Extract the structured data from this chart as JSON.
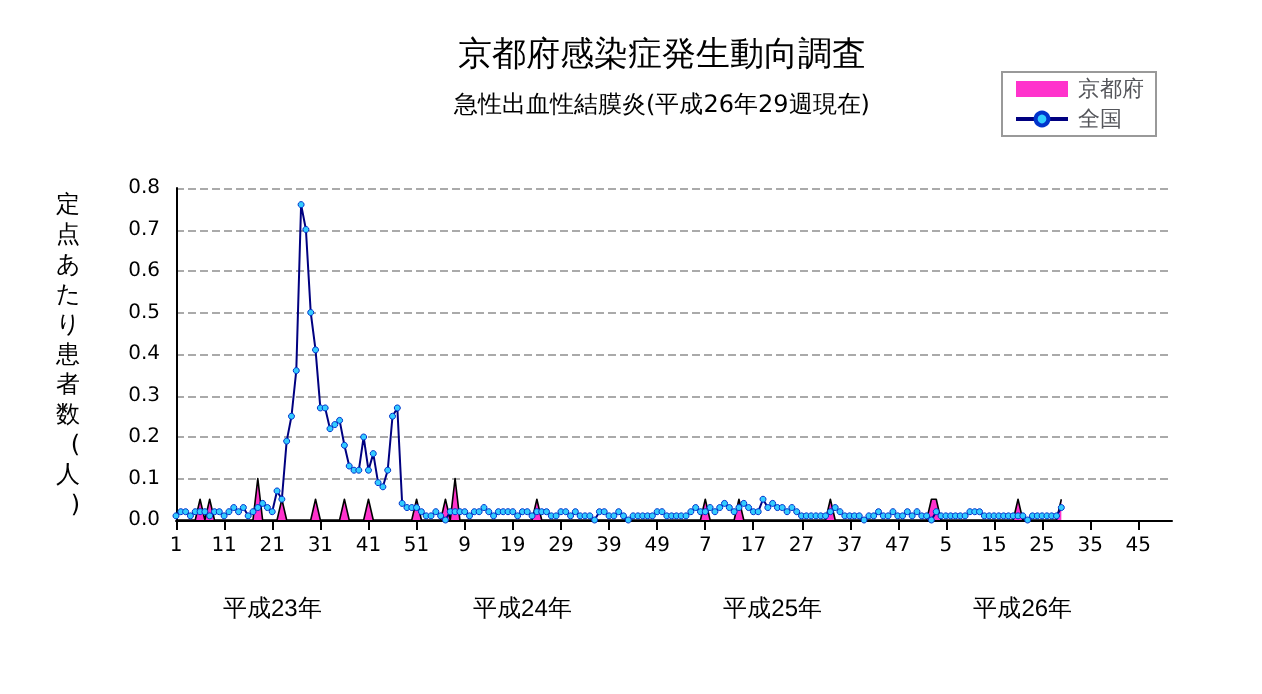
{
  "chart_data": {
    "type": "line",
    "title": "京都府感染症発生動向調査",
    "subtitle": "急性出血性結膜炎(平成26年29週現在)",
    "ylabel": "定点あたり患者数(人)",
    "annotations": [
      "平成23年",
      "平成24年",
      "平成25年",
      "平成26年"
    ],
    "categories": [
      "1",
      null,
      null,
      null,
      null,
      null,
      null,
      null,
      null,
      null,
      "11",
      null,
      null,
      null,
      null,
      null,
      null,
      null,
      null,
      null,
      "21",
      null,
      null,
      null,
      null,
      null,
      null,
      null,
      null,
      null,
      "31",
      null,
      null,
      null,
      null,
      null,
      null,
      null,
      null,
      null,
      "41",
      null,
      null,
      null,
      null,
      null,
      null,
      null,
      null,
      null,
      "51",
      null,
      null,
      null,
      null,
      null,
      null,
      null,
      null,
      null,
      "9",
      null,
      null,
      null,
      null,
      null,
      null,
      null,
      null,
      null,
      "19",
      null,
      null,
      null,
      null,
      null,
      null,
      null,
      null,
      null,
      "29",
      null,
      null,
      null,
      null,
      null,
      null,
      null,
      null,
      null,
      "39",
      null,
      null,
      null,
      null,
      null,
      null,
      null,
      null,
      null,
      "49",
      null,
      null,
      null,
      null,
      null,
      null,
      null,
      null,
      null,
      "7",
      null,
      null,
      null,
      null,
      null,
      null,
      null,
      null,
      null,
      "17",
      null,
      null,
      null,
      null,
      null,
      null,
      null,
      null,
      null,
      "27",
      null,
      null,
      null,
      null,
      null,
      null,
      null,
      null,
      null,
      "37",
      null,
      null,
      null,
      null,
      null,
      null,
      null,
      null,
      null,
      "47",
      null,
      null,
      null,
      null,
      null,
      null,
      null,
      null,
      null,
      "5",
      null,
      null,
      null,
      null,
      null,
      null,
      null,
      null,
      null,
      "15",
      null,
      null,
      null,
      null,
      null,
      null,
      null,
      null,
      null,
      "25",
      null,
      null,
      null,
      null,
      null,
      null,
      null,
      null,
      null,
      "35",
      null,
      null,
      null,
      null,
      null,
      null,
      null,
      null,
      null,
      "45",
      null,
      null,
      null,
      null,
      null,
      null,
      null
    ],
    "series": [
      {
        "name": "京都府",
        "type": "area",
        "marker": "none",
        "color": "#ff33cc",
        "values": [
          0,
          0,
          0,
          0,
          0,
          0.05,
          0,
          0.05,
          0,
          0,
          0,
          0,
          0,
          0,
          0,
          0,
          0,
          0.1,
          0,
          0,
          0,
          0,
          0.05,
          0,
          0,
          0,
          0,
          0,
          0,
          0.05,
          0,
          0,
          0,
          0,
          0,
          0.05,
          0,
          0,
          0,
          0,
          0.05,
          0,
          0,
          0,
          0,
          0,
          0,
          0,
          0,
          0,
          0.05,
          0,
          0,
          0,
          0,
          0,
          0.05,
          0,
          0.1,
          0,
          0,
          0,
          0,
          0,
          0,
          0,
          0,
          0,
          0,
          0,
          0,
          0,
          0,
          0,
          0,
          0.05,
          0,
          0,
          0,
          0,
          0,
          0,
          0,
          0,
          0,
          0,
          0,
          0,
          0,
          0,
          0,
          0,
          0,
          0,
          0,
          0,
          0,
          0,
          0,
          0,
          0,
          0,
          0,
          0,
          0,
          0,
          0,
          0,
          0,
          0,
          0.05,
          0,
          0,
          0,
          0,
          0,
          0,
          0.05,
          0,
          0,
          0,
          0,
          0,
          0,
          0,
          0,
          0,
          0,
          0,
          0,
          0,
          0,
          0,
          0,
          0,
          0,
          0.05,
          0,
          0,
          0,
          0,
          0,
          0,
          0,
          0,
          0,
          0,
          0,
          0,
          0,
          0,
          0,
          0,
          0,
          0,
          0,
          0,
          0.05,
          0.05,
          0,
          0,
          0,
          0,
          0,
          0,
          0,
          0,
          0,
          0,
          0,
          0,
          0,
          0,
          0,
          0,
          0.05,
          0,
          0,
          0,
          0,
          0,
          0,
          0,
          0,
          0.05,
          null,
          null,
          null,
          null,
          null,
          null,
          null,
          null,
          null,
          null,
          null,
          null,
          null,
          null,
          null,
          null,
          null,
          null,
          null,
          null,
          null,
          null,
          null
        ]
      },
      {
        "name": "全国",
        "color": "#33ccff",
        "values": [
          0.01,
          0.02,
          0.02,
          0.01,
          0.02,
          0.02,
          0.02,
          0.01,
          0.02,
          0.02,
          0.01,
          0.02,
          0.03,
          0.02,
          0.03,
          0.01,
          0.02,
          0.03,
          0.04,
          0.03,
          0.02,
          0.07,
          0.05,
          0.19,
          0.25,
          0.36,
          0.76,
          0.7,
          0.5,
          0.41,
          0.27,
          0.27,
          0.22,
          0.23,
          0.24,
          0.18,
          0.13,
          0.12,
          0.12,
          0.2,
          0.12,
          0.16,
          0.09,
          0.08,
          0.12,
          0.25,
          0.27,
          0.04,
          0.03,
          0.03,
          0.03,
          0.02,
          0.01,
          0.01,
          0.02,
          0.01,
          0.0,
          0.02,
          0.02,
          0.02,
          0.02,
          0.01,
          0.02,
          0.02,
          0.03,
          0.02,
          0.01,
          0.02,
          0.02,
          0.02,
          0.02,
          0.01,
          0.02,
          0.02,
          0.01,
          0.02,
          0.02,
          0.02,
          0.01,
          0.01,
          0.02,
          0.02,
          0.01,
          0.02,
          0.01,
          0.01,
          0.01,
          0.0,
          0.02,
          0.02,
          0.01,
          0.01,
          0.02,
          0.01,
          0.0,
          0.01,
          0.01,
          0.01,
          0.01,
          0.01,
          0.02,
          0.02,
          0.01,
          0.01,
          0.01,
          0.01,
          0.01,
          0.02,
          0.03,
          0.02,
          0.02,
          0.03,
          0.02,
          0.03,
          0.04,
          0.03,
          0.02,
          0.03,
          0.04,
          0.03,
          0.02,
          0.02,
          0.05,
          0.03,
          0.04,
          0.03,
          0.03,
          0.02,
          0.03,
          0.02,
          0.01,
          0.01,
          0.01,
          0.01,
          0.01,
          0.01,
          0.02,
          0.03,
          0.02,
          0.01,
          0.01,
          0.01,
          0.01,
          0.0,
          0.01,
          0.01,
          0.02,
          0.01,
          0.01,
          0.02,
          0.01,
          0.01,
          0.02,
          0.01,
          0.02,
          0.01,
          0.01,
          0.0,
          0.02,
          0.01,
          0.01,
          0.01,
          0.01,
          0.01,
          0.01,
          0.02,
          0.02,
          0.02,
          0.01,
          0.01,
          0.01,
          0.01,
          0.01,
          0.01,
          0.01,
          0.01,
          0.01,
          0.0,
          0.01,
          0.01,
          0.01,
          0.01,
          0.01,
          0.01,
          0.03,
          null,
          null,
          null,
          null,
          null,
          null,
          null,
          null,
          null,
          null,
          null,
          null,
          null,
          null,
          null,
          null,
          null,
          null,
          null,
          null,
          null,
          null,
          null
        ]
      }
    ],
    "ylim": [
      0,
      0.8
    ],
    "yticks": [
      {
        "value": 0,
        "label": "0.0"
      },
      {
        "value": 0.1,
        "label": "0.1"
      },
      {
        "value": 0.2,
        "label": "0.2"
      },
      {
        "value": 0.3,
        "label": "0.3"
      },
      {
        "value": 0.4,
        "label": "0.4"
      },
      {
        "value": 0.5,
        "label": "0.5"
      },
      {
        "value": 0.6,
        "label": "0.6"
      },
      {
        "value": 0.7,
        "label": "0.7"
      },
      {
        "value": 0.8,
        "label": "0.8"
      }
    ],
    "grid": "y",
    "legend": "top right",
    "marker": "circle",
    "line_style": "solid"
  }
}
